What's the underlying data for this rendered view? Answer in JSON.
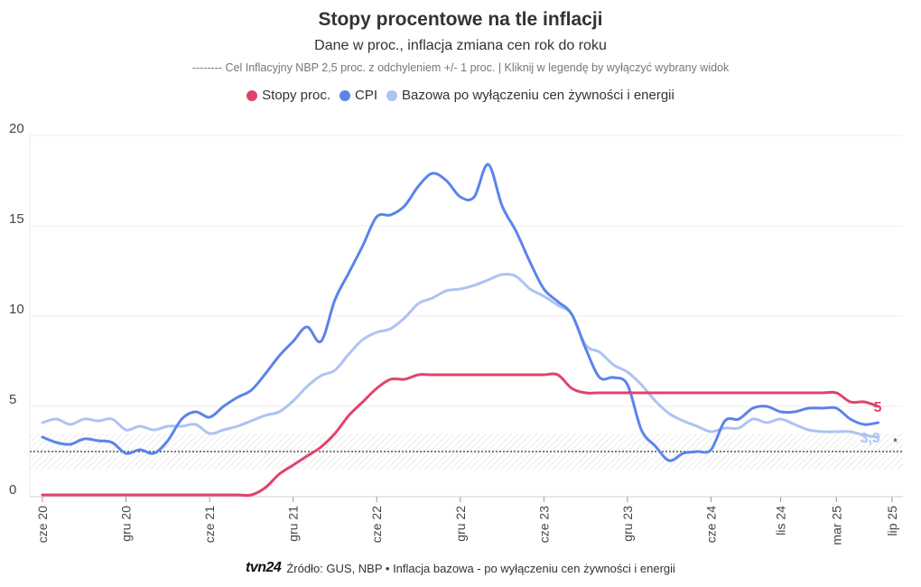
{
  "header": {
    "title": "Stopy procentowe na tle inflacji",
    "subtitle": "Dane w proc., inflacja zmiana cen rok do roku",
    "note": "-------- Cel Inflacyjny NBP 2,5 proc. z odchyleniem +/- 1 proc. | Kliknij w legendę by wyłączyć wybrany widok"
  },
  "footer": {
    "logo": "tvn24",
    "source": "Źródło: GUS, NBP • Inflacja bazowa - po wyłączeniu cen żywności i energii"
  },
  "chart_data": {
    "type": "line",
    "ylim": [
      0,
      20
    ],
    "yticks": [
      {
        "value": 0,
        "label": "0"
      },
      {
        "value": 5,
        "label": "5"
      },
      {
        "value": 10,
        "label": "10"
      },
      {
        "value": 15,
        "label": "15"
      },
      {
        "value": 20,
        "label": "20"
      }
    ],
    "xlim": [
      0,
      61
    ],
    "xticks": [
      {
        "index": 0,
        "label": "cze 20"
      },
      {
        "index": 6,
        "label": "gru 20"
      },
      {
        "index": 12,
        "label": "cze 21"
      },
      {
        "index": 18,
        "label": "gru 21"
      },
      {
        "index": 24,
        "label": "cze 22"
      },
      {
        "index": 30,
        "label": "gru 22"
      },
      {
        "index": 36,
        "label": "cze 23"
      },
      {
        "index": 42,
        "label": "gru 23"
      },
      {
        "index": 48,
        "label": "cze 24"
      },
      {
        "index": 53,
        "label": "lis 24"
      },
      {
        "index": 57,
        "label": "mar 25"
      },
      {
        "index": 61,
        "label": "lip 25"
      }
    ],
    "target_band": {
      "center": 2.5,
      "low": 1.5,
      "high": 3.5,
      "marker": "*"
    },
    "series": [
      {
        "name": "Stopy proc.",
        "color": "#e0436b",
        "end_label": "5",
        "values": [
          0.1,
          0.1,
          0.1,
          0.1,
          0.1,
          0.1,
          0.1,
          0.1,
          0.1,
          0.1,
          0.1,
          0.1,
          0.1,
          0.1,
          0.1,
          0.1,
          0.5,
          1.25,
          1.75,
          2.25,
          2.75,
          3.5,
          4.5,
          5.25,
          6.0,
          6.5,
          6.5,
          6.75,
          6.75,
          6.75,
          6.75,
          6.75,
          6.75,
          6.75,
          6.75,
          6.75,
          6.75,
          6.75,
          6.0,
          5.75,
          5.75,
          5.75,
          5.75,
          5.75,
          5.75,
          5.75,
          5.75,
          5.75,
          5.75,
          5.75,
          5.75,
          5.75,
          5.75,
          5.75,
          5.75,
          5.75,
          5.75,
          5.75,
          5.25,
          5.25,
          5.0
        ]
      },
      {
        "name": "CPI",
        "color": "#5b84ea",
        "values": [
          3.3,
          3.0,
          2.9,
          3.2,
          3.1,
          3.0,
          2.4,
          2.6,
          2.4,
          3.1,
          4.3,
          4.7,
          4.4,
          5.0,
          5.5,
          5.9,
          6.8,
          7.8,
          8.6,
          9.4,
          8.6,
          10.9,
          12.4,
          13.9,
          15.5,
          15.6,
          16.1,
          17.2,
          17.9,
          17.5,
          16.6,
          16.6,
          18.4,
          16.1,
          14.7,
          13.0,
          11.5,
          10.8,
          10.1,
          8.2,
          6.6,
          6.6,
          6.2,
          3.7,
          2.8,
          2.0,
          2.4,
          2.5,
          2.6,
          4.2,
          4.3,
          4.9,
          5.0,
          4.7,
          4.7,
          4.9,
          4.9,
          4.9,
          4.3,
          4.0,
          4.1
        ]
      },
      {
        "name": "Bazowa po wyłączeniu cen żywności i energii",
        "color": "#adc3f3",
        "end_label": "3,3",
        "values": [
          4.1,
          4.3,
          4.0,
          4.3,
          4.2,
          4.3,
          3.7,
          3.9,
          3.7,
          3.9,
          3.9,
          4.0,
          3.5,
          3.7,
          3.9,
          4.2,
          4.5,
          4.7,
          5.3,
          6.1,
          6.7,
          7.0,
          7.9,
          8.7,
          9.1,
          9.3,
          9.9,
          10.7,
          11.0,
          11.4,
          11.5,
          11.7,
          12.0,
          12.3,
          12.2,
          11.5,
          11.1,
          10.6,
          10.1,
          8.4,
          8.0,
          7.3,
          6.9,
          6.2,
          5.3,
          4.6,
          4.2,
          3.9,
          3.6,
          3.8,
          3.8,
          4.3,
          4.1,
          4.3,
          4.0,
          3.7,
          3.6,
          3.6,
          3.6,
          3.4,
          3.3
        ]
      }
    ]
  }
}
